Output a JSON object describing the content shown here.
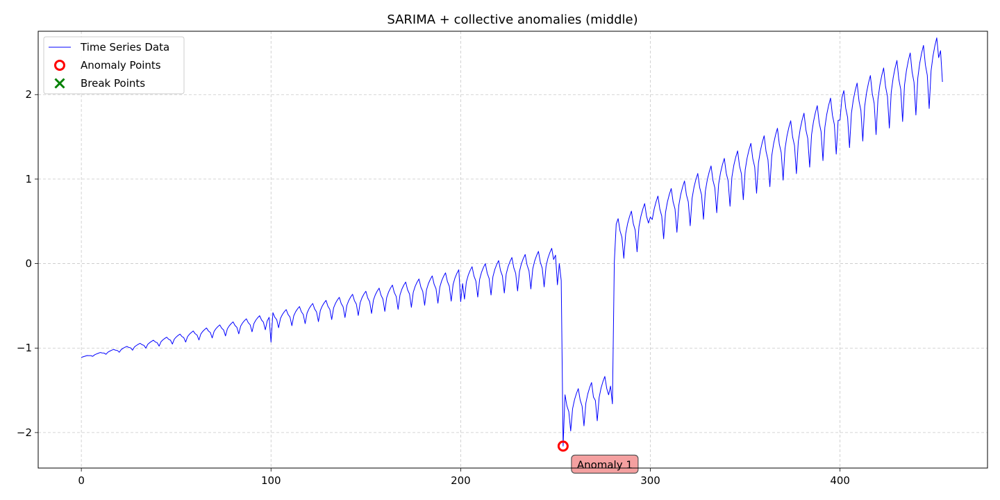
{
  "chart_data": {
    "type": "line",
    "title": "SARIMA + collective anomalies (middle)",
    "xlabel": "",
    "ylabel": "",
    "xlim": [
      -22.75,
      477.75
    ],
    "ylim": [
      -2.42,
      2.75
    ],
    "x_ticks": [
      0,
      100,
      200,
      300,
      400
    ],
    "x_tick_labels": [
      "0",
      "100",
      "200",
      "300",
      "400"
    ],
    "y_ticks": [
      -2,
      -1,
      0,
      1,
      2
    ],
    "y_tick_labels": [
      "−2",
      "−1",
      "0",
      "1",
      "2"
    ],
    "grid": true,
    "legend_position": "top-left",
    "legend": [
      {
        "label": "Time Series Data",
        "marker": "line",
        "color": "#0000ff"
      },
      {
        "label": "Anomaly Points",
        "marker": "circle",
        "color": "#ff0000"
      },
      {
        "label": "Break Points",
        "marker": "x",
        "color": "#008000"
      }
    ],
    "series": [
      {
        "name": "Time Series Data",
        "color": "#0000ff",
        "n_points": 455,
        "base_segments": [
          {
            "from": 0,
            "to": 253,
            "start": -1.11,
            "end": 0.02
          },
          {
            "from": 254,
            "to": 280,
            "start": -1.75,
            "end": -1.5
          },
          {
            "from": 281,
            "to": 454,
            "start": 0.3,
            "end": 2.38
          }
        ],
        "seasonal_period": 7,
        "seasonal_amplitude": [
          0.01,
          0.55
        ],
        "description_points": [
          {
            "x": 0,
            "y": -1.11
          },
          {
            "x": 100,
            "y": -0.93
          },
          {
            "x": 200,
            "y": -0.45
          },
          {
            "x": 250,
            "y": 0.1
          },
          {
            "x": 253,
            "y": -0.2
          },
          {
            "x": 254,
            "y": -2.16
          },
          {
            "x": 270,
            "y": -1.58
          },
          {
            "x": 279,
            "y": -1.45
          },
          {
            "x": 280,
            "y": -1.66
          },
          {
            "x": 281,
            "y": 0.02
          },
          {
            "x": 300,
            "y": 0.55
          },
          {
            "x": 400,
            "y": 1.7
          },
          {
            "x": 453,
            "y": 2.52
          },
          {
            "x": 454,
            "y": 2.15
          }
        ]
      }
    ],
    "anomaly_points": [
      {
        "x": 254,
        "y": -2.16,
        "label": "Anomaly 1"
      }
    ],
    "break_points": [],
    "colors": {
      "line": "#0000ff",
      "anomaly": "#ff0000",
      "break": "#008000",
      "annotation_bg": "#f4a0a0",
      "annotation_border": "#555555"
    }
  }
}
